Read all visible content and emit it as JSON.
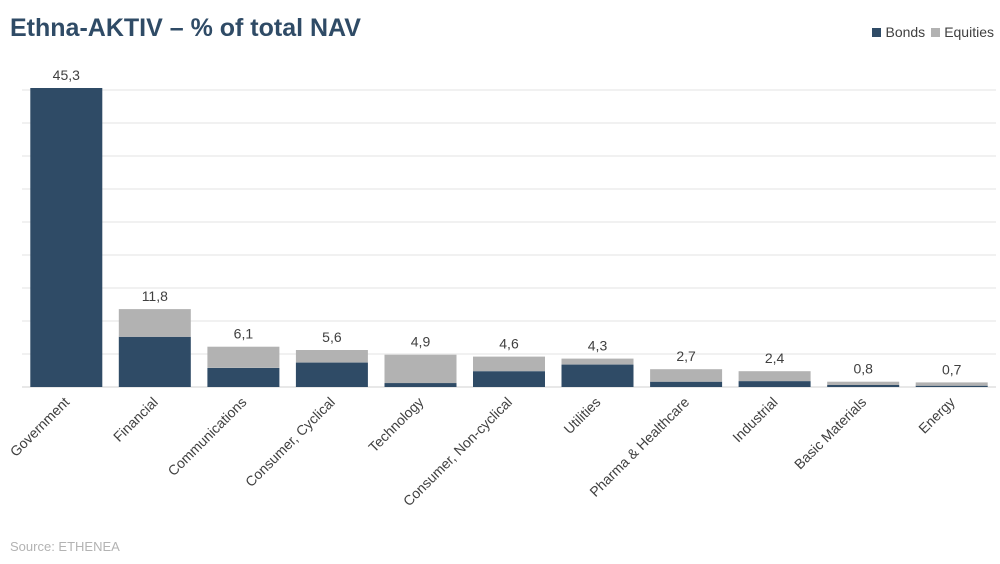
{
  "title": "Ethna-AKTIV – % of total NAV",
  "source": "Source: ETHENEA",
  "legend": {
    "bonds_label": "Bonds",
    "equities_label": "Equities"
  },
  "colors": {
    "bonds": "#2f4b66",
    "equities": "#b2b2b2",
    "gridline": "#e3e3e3",
    "axis": "#d0d0d0",
    "text": "#404040"
  },
  "chart_data": {
    "type": "bar",
    "stacked": true,
    "categories": [
      "Government",
      "Financial",
      "Communications",
      "Consumer, Cyclical",
      "Technology",
      "Consumer, Non-cyclical",
      "Utilities",
      "Pharma & Healthcare",
      "Industrial",
      "Basic Materials",
      "Energy"
    ],
    "series": [
      {
        "name": "Bonds",
        "values": [
          45.3,
          7.6,
          2.9,
          3.7,
          0.6,
          2.4,
          3.4,
          0.8,
          0.9,
          0.3,
          0.2
        ]
      },
      {
        "name": "Equities",
        "values": [
          0.0,
          4.2,
          3.2,
          1.9,
          4.3,
          2.2,
          0.9,
          1.9,
          1.5,
          0.5,
          0.5
        ]
      }
    ],
    "totals": [
      "45,3",
      "11,8",
      "6,1",
      "5,6",
      "4,9",
      "4,6",
      "4,3",
      "2,7",
      "2,4",
      "0,8",
      "0,7"
    ],
    "ylim": [
      0,
      45
    ],
    "grid": true,
    "legend_position": "top-right"
  }
}
